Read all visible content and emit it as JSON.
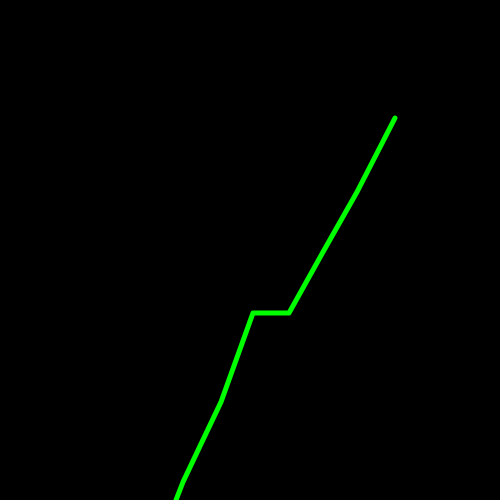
{
  "background_color": "#000000",
  "stroke_color": "#00FF00",
  "shape": "green-polyline"
}
